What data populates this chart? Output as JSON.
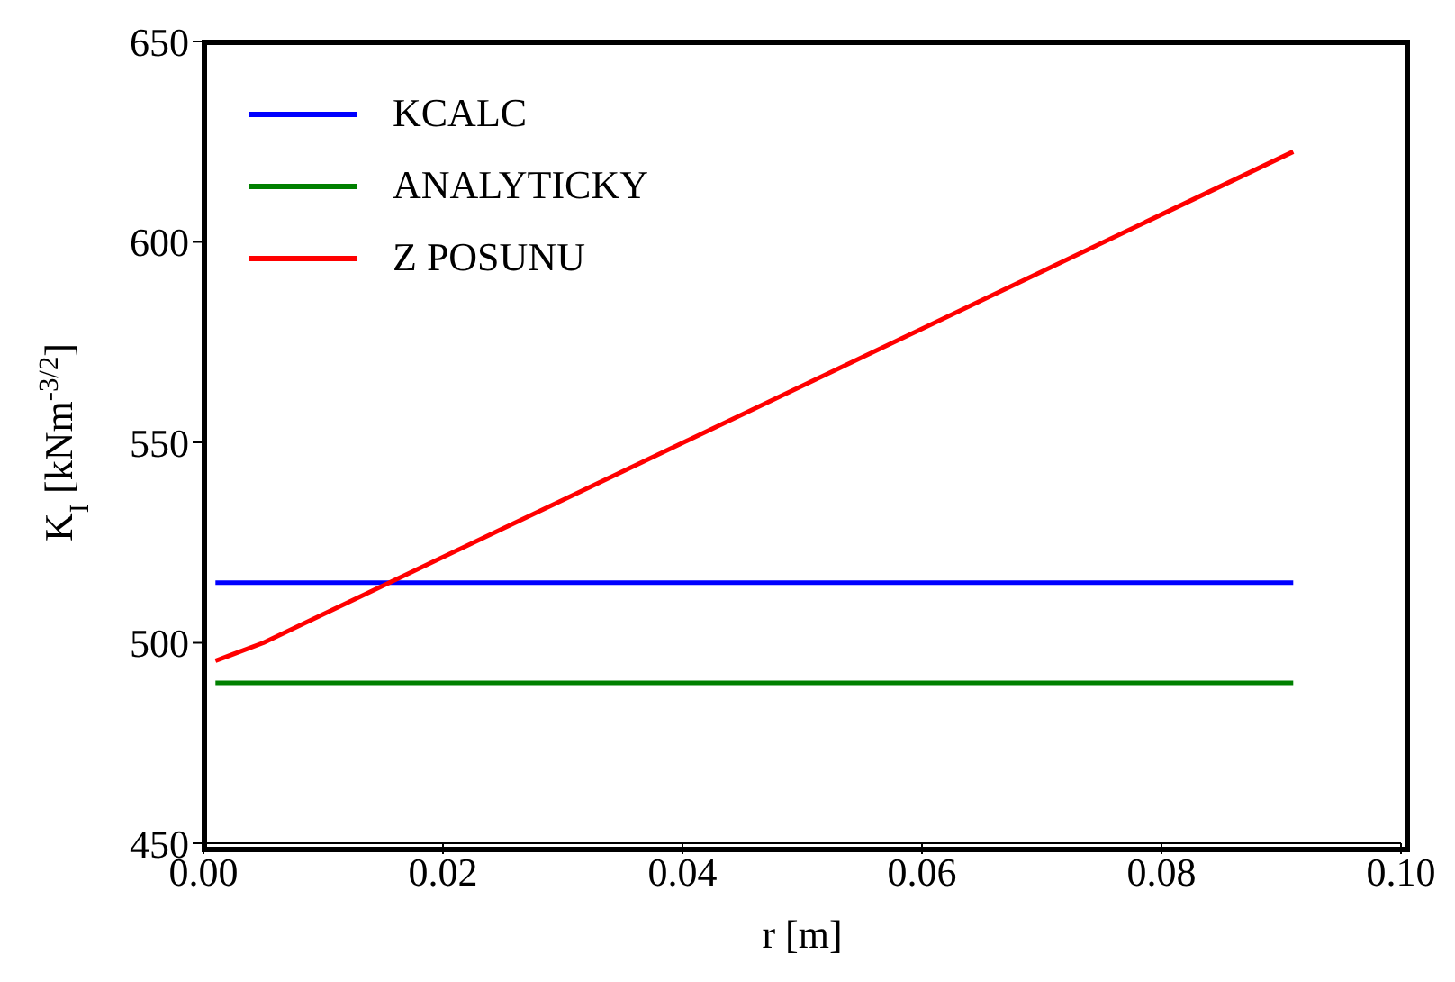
{
  "chart_data": {
    "type": "line",
    "xlabel": "r [m]",
    "ylabel": "K$_{I}$ [kNm$^{-3/2}$]",
    "xlim": [
      0,
      0.1
    ],
    "xticks": [
      {
        "value": 0,
        "label": "0.00"
      },
      {
        "value": 0.02,
        "label": "0.02"
      },
      {
        "value": 0.04,
        "label": "0.04"
      },
      {
        "value": 0.06,
        "label": "0.06"
      },
      {
        "value": 0.08,
        "label": "0.08"
      },
      {
        "value": 0.1,
        "label": "0.10"
      }
    ],
    "ylim": [
      450,
      650
    ],
    "yticks": [
      450,
      500,
      550,
      600,
      650
    ],
    "grid": false,
    "legend": "top left",
    "series": [
      {
        "name": "KCALC",
        "color": "#0000ff",
        "x": [
          0.001,
          0.091
        ],
        "values": [
          515,
          515
        ]
      },
      {
        "name": "ANALYTICKY",
        "color": "#008000",
        "x": [
          0.001,
          0.091
        ],
        "values": [
          490,
          490
        ]
      },
      {
        "name": "Z POSUNU",
        "color": "#ff0000",
        "x": [
          0.001,
          0.005,
          0.091
        ],
        "values": [
          495.5,
          500,
          622.5
        ]
      }
    ]
  }
}
